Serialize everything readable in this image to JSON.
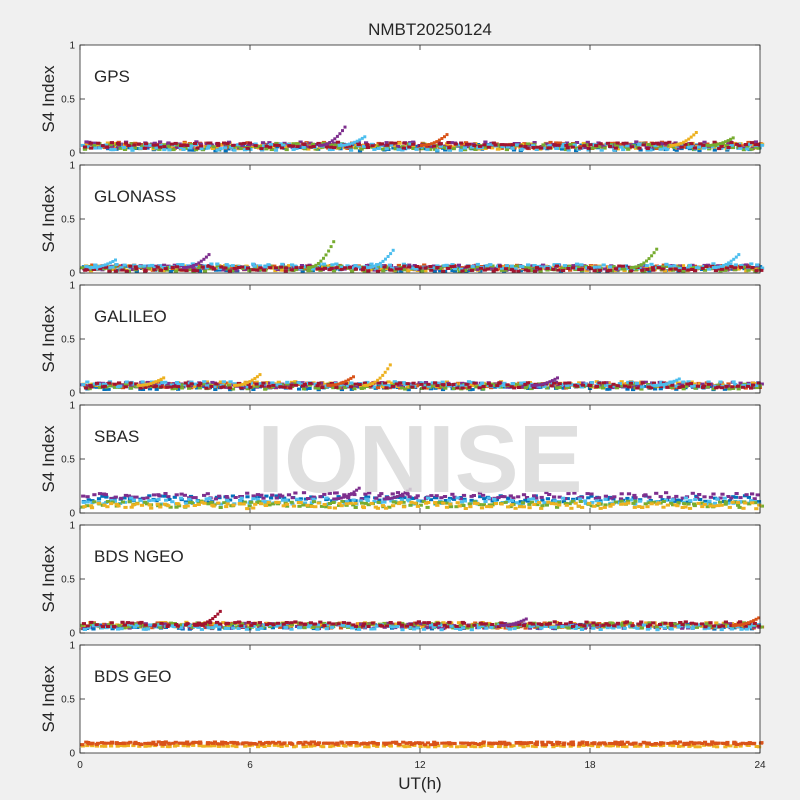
{
  "figure": {
    "title": "NMBT20250124",
    "xlabel": "UT(h)",
    "watermark": "IONISE"
  },
  "chart_data": [
    {
      "type": "scatter",
      "panel_label": "GPS",
      "ylabel": "S4 Index",
      "xlim": [
        0,
        24
      ],
      "ylim": [
        0,
        1
      ],
      "xticks": [
        0,
        6,
        12,
        18,
        24
      ],
      "yticks": [
        0,
        0.5,
        1
      ],
      "baseline": 0.06,
      "band": 0.03,
      "series": [
        {
          "color": "#0072BD",
          "offset": -0.01
        },
        {
          "color": "#D95319",
          "offset": 0.01
        },
        {
          "color": "#EDB120",
          "offset": 0.005
        },
        {
          "color": "#7E2F8E",
          "offset": 0.015
        },
        {
          "color": "#77AC30",
          "offset": 0.0
        },
        {
          "color": "#4DBEEE",
          "offset": -0.005
        },
        {
          "color": "#A2142F",
          "offset": 0.01
        }
      ],
      "peaks": [
        {
          "x": 9.3,
          "y": 0.24,
          "color": "#7E2F8E"
        },
        {
          "x": 10.0,
          "y": 0.15,
          "color": "#4DBEEE"
        },
        {
          "x": 12.9,
          "y": 0.17,
          "color": "#D95319"
        },
        {
          "x": 21.7,
          "y": 0.19,
          "color": "#EDB120"
        },
        {
          "x": 23.0,
          "y": 0.14,
          "color": "#77AC30"
        }
      ]
    },
    {
      "type": "scatter",
      "panel_label": "GLONASS",
      "ylabel": "S4 Index",
      "xlim": [
        0,
        24
      ],
      "ylim": [
        0,
        1
      ],
      "xticks": [
        0,
        6,
        12,
        18,
        24
      ],
      "yticks": [
        0,
        0.5,
        1
      ],
      "baseline": 0.04,
      "band": 0.025,
      "series": [
        {
          "color": "#0072BD",
          "offset": 0.0
        },
        {
          "color": "#D95319",
          "offset": 0.01
        },
        {
          "color": "#EDB120",
          "offset": 0.005
        },
        {
          "color": "#7E2F8E",
          "offset": 0.01
        },
        {
          "color": "#77AC30",
          "offset": 0.0
        },
        {
          "color": "#4DBEEE",
          "offset": 0.02
        },
        {
          "color": "#A2142F",
          "offset": 0.0
        }
      ],
      "peaks": [
        {
          "x": 1.2,
          "y": 0.12,
          "color": "#4DBEEE"
        },
        {
          "x": 4.5,
          "y": 0.17,
          "color": "#7E2F8E"
        },
        {
          "x": 8.9,
          "y": 0.29,
          "color": "#77AC30"
        },
        {
          "x": 11.0,
          "y": 0.21,
          "color": "#4DBEEE"
        },
        {
          "x": 20.3,
          "y": 0.22,
          "color": "#77AC30"
        },
        {
          "x": 23.2,
          "y": 0.17,
          "color": "#4DBEEE"
        }
      ]
    },
    {
      "type": "scatter",
      "panel_label": "GALILEO",
      "ylabel": "S4 Index",
      "xlim": [
        0,
        24
      ],
      "ylim": [
        0,
        1
      ],
      "xticks": [
        0,
        6,
        12,
        18,
        24
      ],
      "yticks": [
        0,
        0.5,
        1
      ],
      "baseline": 0.06,
      "band": 0.025,
      "series": [
        {
          "color": "#0072BD",
          "offset": -0.005
        },
        {
          "color": "#D95319",
          "offset": 0.01
        },
        {
          "color": "#EDB120",
          "offset": 0.02
        },
        {
          "color": "#7E2F8E",
          "offset": 0.015
        },
        {
          "color": "#77AC30",
          "offset": 0.0
        },
        {
          "color": "#4DBEEE",
          "offset": 0.02
        },
        {
          "color": "#A2142F",
          "offset": 0.01
        }
      ],
      "peaks": [
        {
          "x": 2.9,
          "y": 0.14,
          "color": "#EDB120"
        },
        {
          "x": 6.3,
          "y": 0.17,
          "color": "#EDB120"
        },
        {
          "x": 9.6,
          "y": 0.15,
          "color": "#D95319"
        },
        {
          "x": 10.9,
          "y": 0.26,
          "color": "#EDB120"
        },
        {
          "x": 16.8,
          "y": 0.14,
          "color": "#7E2F8E"
        },
        {
          "x": 21.1,
          "y": 0.13,
          "color": "#4DBEEE"
        }
      ]
    },
    {
      "type": "scatter",
      "panel_label": "SBAS",
      "ylabel": "S4 Index",
      "xlim": [
        0,
        24
      ],
      "ylim": [
        0,
        1
      ],
      "xticks": [
        0,
        6,
        12,
        18,
        24
      ],
      "yticks": [
        0,
        0.5,
        1
      ],
      "baseline": 0.12,
      "band": 0.03,
      "series": [
        {
          "color": "#0072BD",
          "offset": 0.01
        },
        {
          "color": "#7E2F8E",
          "offset": 0.04
        },
        {
          "color": "#4DBEEE",
          "offset": -0.01
        },
        {
          "color": "#77AC30",
          "offset": -0.04
        },
        {
          "color": "#EDB120",
          "offset": -0.05
        }
      ],
      "peaks": [
        {
          "x": 9.8,
          "y": 0.23,
          "color": "#7E2F8E"
        },
        {
          "x": 11.6,
          "y": 0.22,
          "color": "#7E2F8E"
        }
      ]
    },
    {
      "type": "scatter",
      "panel_label": "BDS NGEO",
      "ylabel": "S4 Index",
      "xlim": [
        0,
        24
      ],
      "ylim": [
        0,
        1
      ],
      "xticks": [
        0,
        6,
        12,
        18,
        24
      ],
      "yticks": [
        0,
        0.5,
        1
      ],
      "baseline": 0.06,
      "band": 0.025,
      "series": [
        {
          "color": "#0072BD",
          "offset": 0.0
        },
        {
          "color": "#D95319",
          "offset": 0.01
        },
        {
          "color": "#EDB120",
          "offset": 0.015
        },
        {
          "color": "#7E2F8E",
          "offset": 0.005
        },
        {
          "color": "#77AC30",
          "offset": 0.01
        },
        {
          "color": "#4DBEEE",
          "offset": -0.005
        },
        {
          "color": "#A2142F",
          "offset": 0.02
        }
      ],
      "peaks": [
        {
          "x": 4.9,
          "y": 0.2,
          "color": "#A2142F"
        },
        {
          "x": 15.7,
          "y": 0.13,
          "color": "#7E2F8E"
        },
        {
          "x": 23.9,
          "y": 0.14,
          "color": "#D95319"
        }
      ]
    },
    {
      "type": "scatter",
      "panel_label": "BDS GEO",
      "ylabel": "S4 Index",
      "xlim": [
        0,
        24
      ],
      "ylim": [
        0,
        1
      ],
      "xticks": [
        0,
        6,
        12,
        18,
        24
      ],
      "yticks": [
        0,
        0.5,
        1
      ],
      "baseline": 0.08,
      "band": 0.008,
      "series": [
        {
          "color": "#EDB120",
          "offset": -0.015
        },
        {
          "color": "#D95319",
          "offset": 0.005
        },
        {
          "color": "#D95319",
          "offset": 0.015
        }
      ],
      "peaks": []
    }
  ]
}
